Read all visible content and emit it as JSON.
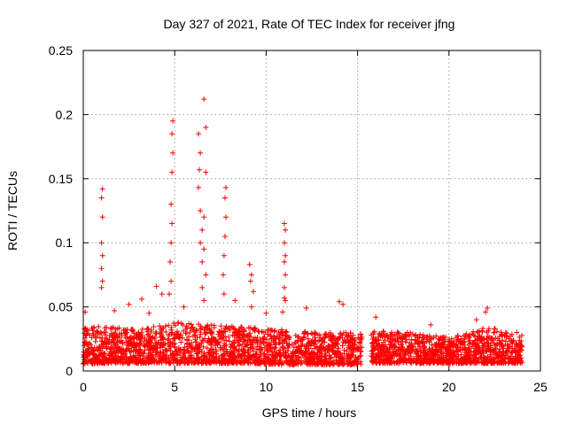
{
  "chart_data": {
    "type": "scatter",
    "title": "Day 327 of 2021, Rate Of TEC Index for receiver jfng",
    "xlabel": "GPS time / hours",
    "ylabel": "ROTI / TECUs",
    "xlim": [
      0,
      25
    ],
    "ylim": [
      0,
      0.25
    ],
    "xticks": [
      0,
      5,
      10,
      15,
      20,
      25
    ],
    "yticks": [
      0,
      0.05,
      0.1,
      0.15,
      0.2,
      0.25
    ],
    "xtick_labels": [
      "0",
      "5",
      "10",
      "15",
      "20",
      "25"
    ],
    "ytick_labels": [
      "0",
      "0.05",
      "0.1",
      "0.15",
      "0.2",
      "0.25"
    ],
    "grid": true,
    "marker": "+",
    "color": "#ff0000",
    "series": [
      {
        "name": "ROTI",
        "baseline": [
          {
            "x": 0.0,
            "low": 0.005,
            "high": 0.035
          },
          {
            "x": 1.0,
            "low": 0.006,
            "high": 0.035
          },
          {
            "x": 3.0,
            "low": 0.006,
            "high": 0.032
          },
          {
            "x": 5.0,
            "low": 0.006,
            "high": 0.038
          },
          {
            "x": 7.0,
            "low": 0.006,
            "high": 0.036
          },
          {
            "x": 9.0,
            "low": 0.006,
            "high": 0.034
          },
          {
            "x": 11.0,
            "low": 0.005,
            "high": 0.032
          },
          {
            "x": 13.0,
            "low": 0.005,
            "high": 0.03
          },
          {
            "x": 15.2,
            "low": 0.005,
            "high": 0.03
          },
          {
            "x": 15.8,
            "low": 0.006,
            "high": 0.032
          },
          {
            "x": 18.0,
            "low": 0.006,
            "high": 0.03
          },
          {
            "x": 20.0,
            "low": 0.006,
            "high": 0.026
          },
          {
            "x": 22.0,
            "low": 0.006,
            "high": 0.034
          },
          {
            "x": 24.0,
            "low": 0.006,
            "high": 0.03
          }
        ],
        "data_gap": [
          15.25,
          15.75
        ],
        "peaks": [
          {
            "x": 1.05,
            "y": 0.142
          },
          {
            "x": 1.0,
            "y": 0.135
          },
          {
            "x": 1.05,
            "y": 0.12
          },
          {
            "x": 1.0,
            "y": 0.1
          },
          {
            "x": 1.05,
            "y": 0.09
          },
          {
            "x": 1.0,
            "y": 0.08
          },
          {
            "x": 1.05,
            "y": 0.07
          },
          {
            "x": 1.0,
            "y": 0.065
          },
          {
            "x": 4.9,
            "y": 0.195
          },
          {
            "x": 4.85,
            "y": 0.185
          },
          {
            "x": 4.9,
            "y": 0.17
          },
          {
            "x": 4.85,
            "y": 0.155
          },
          {
            "x": 4.8,
            "y": 0.13
          },
          {
            "x": 4.85,
            "y": 0.115
          },
          {
            "x": 4.8,
            "y": 0.1
          },
          {
            "x": 4.75,
            "y": 0.085
          },
          {
            "x": 4.8,
            "y": 0.07
          },
          {
            "x": 4.7,
            "y": 0.06
          },
          {
            "x": 6.6,
            "y": 0.212
          },
          {
            "x": 6.7,
            "y": 0.19
          },
          {
            "x": 6.3,
            "y": 0.185
          },
          {
            "x": 6.4,
            "y": 0.17
          },
          {
            "x": 6.35,
            "y": 0.157
          },
          {
            "x": 6.7,
            "y": 0.155
          },
          {
            "x": 6.3,
            "y": 0.143
          },
          {
            "x": 6.4,
            "y": 0.125
          },
          {
            "x": 6.6,
            "y": 0.12
          },
          {
            "x": 6.5,
            "y": 0.11
          },
          {
            "x": 6.4,
            "y": 0.1
          },
          {
            "x": 6.6,
            "y": 0.095
          },
          {
            "x": 6.5,
            "y": 0.085
          },
          {
            "x": 6.7,
            "y": 0.075
          },
          {
            "x": 6.5,
            "y": 0.065
          },
          {
            "x": 6.6,
            "y": 0.055
          },
          {
            "x": 7.8,
            "y": 0.143
          },
          {
            "x": 7.75,
            "y": 0.135
          },
          {
            "x": 7.8,
            "y": 0.12
          },
          {
            "x": 7.75,
            "y": 0.105
          },
          {
            "x": 7.7,
            "y": 0.09
          },
          {
            "x": 7.65,
            "y": 0.075
          },
          {
            "x": 7.7,
            "y": 0.06
          },
          {
            "x": 9.1,
            "y": 0.083
          },
          {
            "x": 9.2,
            "y": 0.075
          },
          {
            "x": 9.15,
            "y": 0.07
          },
          {
            "x": 9.3,
            "y": 0.062
          },
          {
            "x": 9.2,
            "y": 0.05
          },
          {
            "x": 11.0,
            "y": 0.115
          },
          {
            "x": 11.05,
            "y": 0.11
          },
          {
            "x": 11.0,
            "y": 0.1
          },
          {
            "x": 11.05,
            "y": 0.09
          },
          {
            "x": 11.0,
            "y": 0.085
          },
          {
            "x": 11.05,
            "y": 0.075
          },
          {
            "x": 11.0,
            "y": 0.065
          },
          {
            "x": 11.0,
            "y": 0.057
          },
          {
            "x": 11.05,
            "y": 0.055
          },
          {
            "x": 10.9,
            "y": 0.046
          },
          {
            "x": 3.2,
            "y": 0.056
          },
          {
            "x": 4.0,
            "y": 0.066
          },
          {
            "x": 4.3,
            "y": 0.06
          },
          {
            "x": 5.5,
            "y": 0.05
          },
          {
            "x": 8.3,
            "y": 0.055
          },
          {
            "x": 12.2,
            "y": 0.049
          },
          {
            "x": 14.0,
            "y": 0.054
          },
          {
            "x": 14.2,
            "y": 0.052
          },
          {
            "x": 1.7,
            "y": 0.047
          },
          {
            "x": 0.1,
            "y": 0.046
          },
          {
            "x": 22.1,
            "y": 0.049
          },
          {
            "x": 22.0,
            "y": 0.046
          },
          {
            "x": 21.5,
            "y": 0.04
          },
          {
            "x": 16.0,
            "y": 0.042
          },
          {
            "x": 19.0,
            "y": 0.036
          },
          {
            "x": 10.0,
            "y": 0.045
          },
          {
            "x": 2.5,
            "y": 0.052
          },
          {
            "x": 3.6,
            "y": 0.045
          }
        ]
      }
    ]
  }
}
